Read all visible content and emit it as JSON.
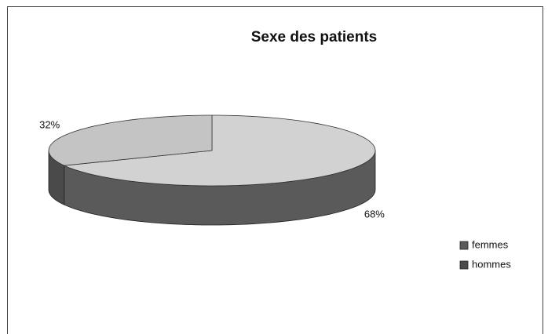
{
  "chart_data": {
    "type": "pie3d",
    "title": "Sexe des patients",
    "categories": [
      "femmes",
      "hommes"
    ],
    "values": [
      68,
      32
    ],
    "value_labels": [
      "68%",
      "32%"
    ],
    "colors": [
      "#d2d2d2",
      "#c4c4c4"
    ],
    "side_colors": [
      "#5a5a5a",
      "#4a4a4a"
    ],
    "legend": "right"
  }
}
